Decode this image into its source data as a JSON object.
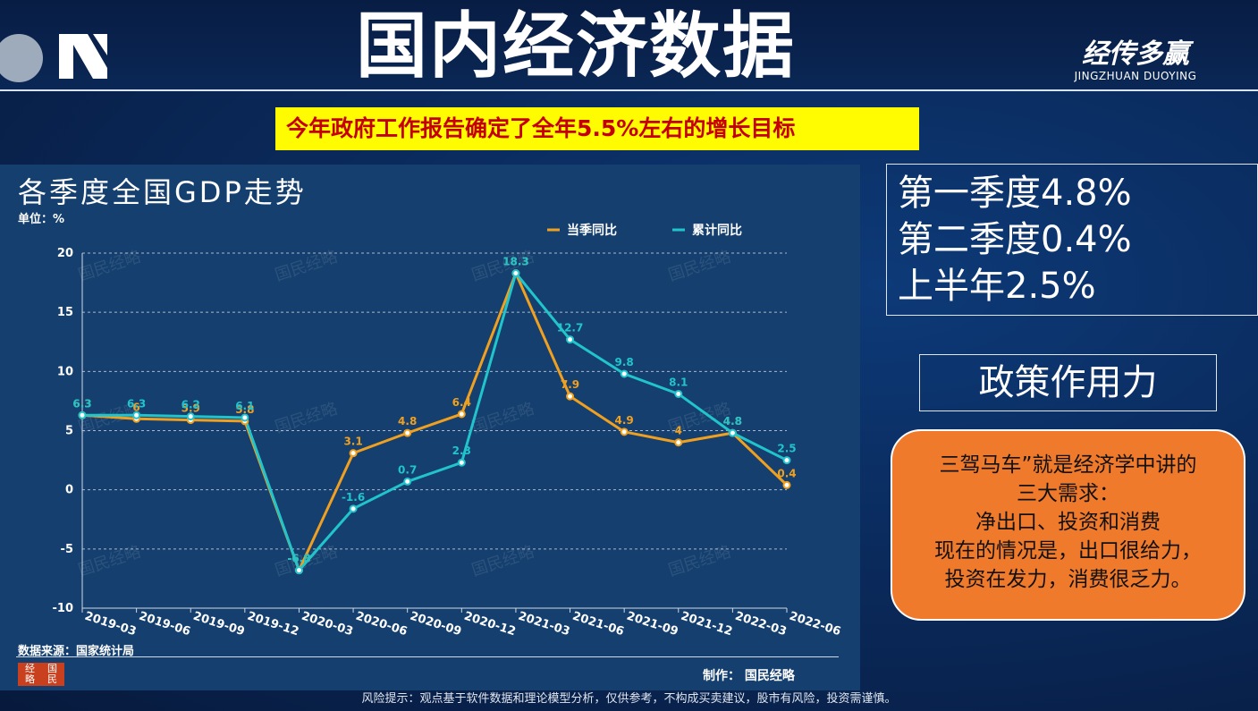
{
  "header": {
    "title": "国内经济数据",
    "brand_cn": "经传多赢",
    "brand_en": "JINGZHUAN DUOYING"
  },
  "subtitle": "今年政府工作报告确定了全年5.5%左右的增长目标",
  "chart_panel": {
    "title": "各季度全国GDP走势",
    "unit": "单位：%",
    "data_source": "数据来源：国家统计局",
    "maker": "制作：  国民经略",
    "stamp_chars": [
      "经",
      "国",
      "略",
      "民"
    ],
    "watermark": "国民经略"
  },
  "chart_data": {
    "type": "line",
    "categories": [
      "2019-03",
      "2019-06",
      "2019-09",
      "2019-12",
      "2020-03",
      "2020-06",
      "2020-09",
      "2020-12",
      "2021-03",
      "2021-06",
      "2021-09",
      "2021-12",
      "2022-03",
      "2022-06"
    ],
    "ylim": [
      -10,
      20
    ],
    "yticks": [
      -10,
      -5,
      0,
      5,
      10,
      15,
      20
    ],
    "grid": true,
    "legend_position": "top-right",
    "series": [
      {
        "name": "当季同比",
        "color": "#f0a020",
        "values": [
          6.3,
          6,
          5.9,
          5.8,
          -6.8,
          3.1,
          4.8,
          6.4,
          18.3,
          7.9,
          4.9,
          4,
          4.8,
          0.4
        ],
        "labels": [
          "6.3",
          "6",
          "5.9",
          "5.8",
          "-6.8",
          "3.1",
          "4.8",
          "6.4",
          "18.3",
          "7.9",
          "4.9",
          "4",
          "4.8",
          "0.4"
        ]
      },
      {
        "name": "累计同比",
        "color": "#22c4cc",
        "values": [
          6.3,
          6.3,
          6.2,
          6.1,
          -6.8,
          -1.6,
          0.7,
          2.3,
          18.3,
          12.7,
          9.8,
          8.1,
          4.8,
          2.5
        ],
        "labels": [
          "6.3",
          "6.3",
          "6.2",
          "6.1",
          "-6.8",
          "-1.6",
          "0.7",
          "2.3",
          "18.3",
          "12.7",
          "9.8",
          "8.1",
          "4.8",
          "2.5"
        ]
      }
    ]
  },
  "stats": {
    "lines": [
      "第一季度4.8%",
      "第二季度0.4%",
      "上半年2.5%"
    ]
  },
  "policy_label": "政策作用力",
  "callout": {
    "lines": [
      "三驾马车”就是经济学中讲的",
      "三大需求：",
      "净出口、投资和消费",
      "现在的情况是，出口很给力，",
      "投资在发力，消费很乏力。"
    ]
  },
  "disclaimer": "风险提示：观点基于软件数据和理论模型分析，仅供参考，不构成买卖建议，股市有风险，投资需谨慎。"
}
